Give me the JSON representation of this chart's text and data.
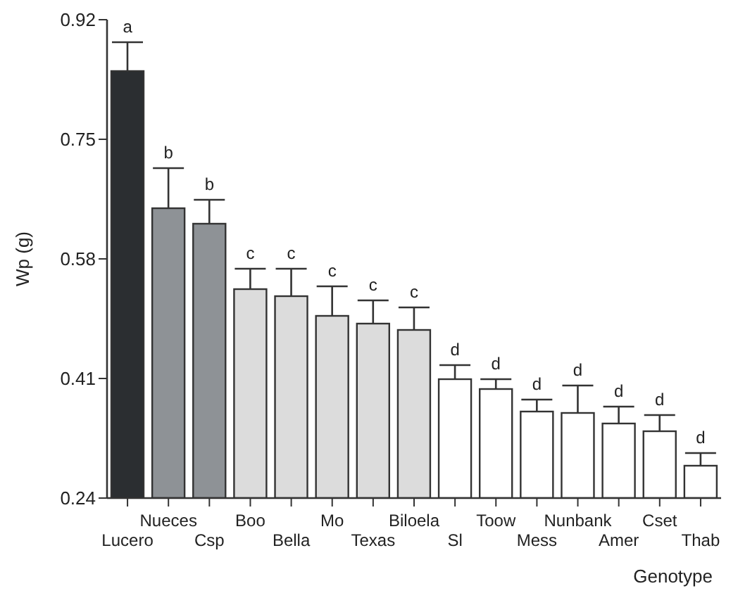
{
  "chart_data": {
    "type": "bar",
    "xlabel": "Genotype",
    "ylabel": "Wp (g)",
    "categories": [
      "Lucero",
      "Nueces",
      "Csp",
      "Boo",
      "Bella",
      "Mo",
      "Texas",
      "Biloela",
      "Sl",
      "Toow",
      "Mess",
      "Nunbank",
      "Amer",
      "Cset",
      "Thab"
    ],
    "values": [
      0.847,
      0.652,
      0.63,
      0.537,
      0.527,
      0.499,
      0.488,
      0.479,
      0.409,
      0.395,
      0.363,
      0.361,
      0.346,
      0.335,
      0.286
    ],
    "errors": [
      [
        0.847,
        0.888
      ],
      [
        0.652,
        0.709
      ],
      [
        0.63,
        0.664
      ],
      [
        0.537,
        0.566
      ],
      [
        0.527,
        0.566
      ],
      [
        0.499,
        0.541
      ],
      [
        0.488,
        0.521
      ],
      [
        0.479,
        0.511
      ],
      [
        0.409,
        0.429
      ],
      [
        0.395,
        0.409
      ],
      [
        0.363,
        0.38
      ],
      [
        0.361,
        0.4
      ],
      [
        0.346,
        0.37
      ],
      [
        0.335,
        0.358
      ],
      [
        0.286,
        0.304
      ]
    ],
    "colors": [
      "#2b2e31",
      "#8e9296",
      "#8e9296",
      "#dcdcdc",
      "#dcdcdc",
      "#dcdcdc",
      "#dcdcdc",
      "#dcdcdc",
      "#ffffff",
      "#ffffff",
      "#ffffff",
      "#ffffff",
      "#ffffff",
      "#ffffff",
      "#ffffff"
    ],
    "ylim": [
      0.24,
      0.92
    ],
    "yticks": [
      0.24,
      0.41,
      0.58,
      0.75,
      0.92
    ],
    "grid": false,
    "annotations": [
      {
        "text": "a",
        "x": "Lucero",
        "y": 0.888
      },
      {
        "text": "b",
        "x": "Nueces",
        "y": 0.709
      },
      {
        "text": "b",
        "x": "Csp",
        "y": 0.664
      },
      {
        "text": "c",
        "x": "Boo",
        "y": 0.566
      },
      {
        "text": "c",
        "x": "Bella",
        "y": 0.566
      },
      {
        "text": "c",
        "x": "Mo",
        "y": 0.541
      },
      {
        "text": "c",
        "x": "Texas",
        "y": 0.521
      },
      {
        "text": "c",
        "x": "Biloela",
        "y": 0.511
      },
      {
        "text": "d",
        "x": "Sl",
        "y": 0.429
      },
      {
        "text": "d",
        "x": "Toow",
        "y": 0.409
      },
      {
        "text": "d",
        "x": "Mess",
        "y": 0.38
      },
      {
        "text": "d",
        "x": "Nunbank",
        "y": 0.4
      },
      {
        "text": "d",
        "x": "Amer",
        "y": 0.37
      },
      {
        "text": "d",
        "x": "Cset",
        "y": 0.358
      },
      {
        "text": "d",
        "x": "Thab",
        "y": 0.304
      }
    ]
  }
}
